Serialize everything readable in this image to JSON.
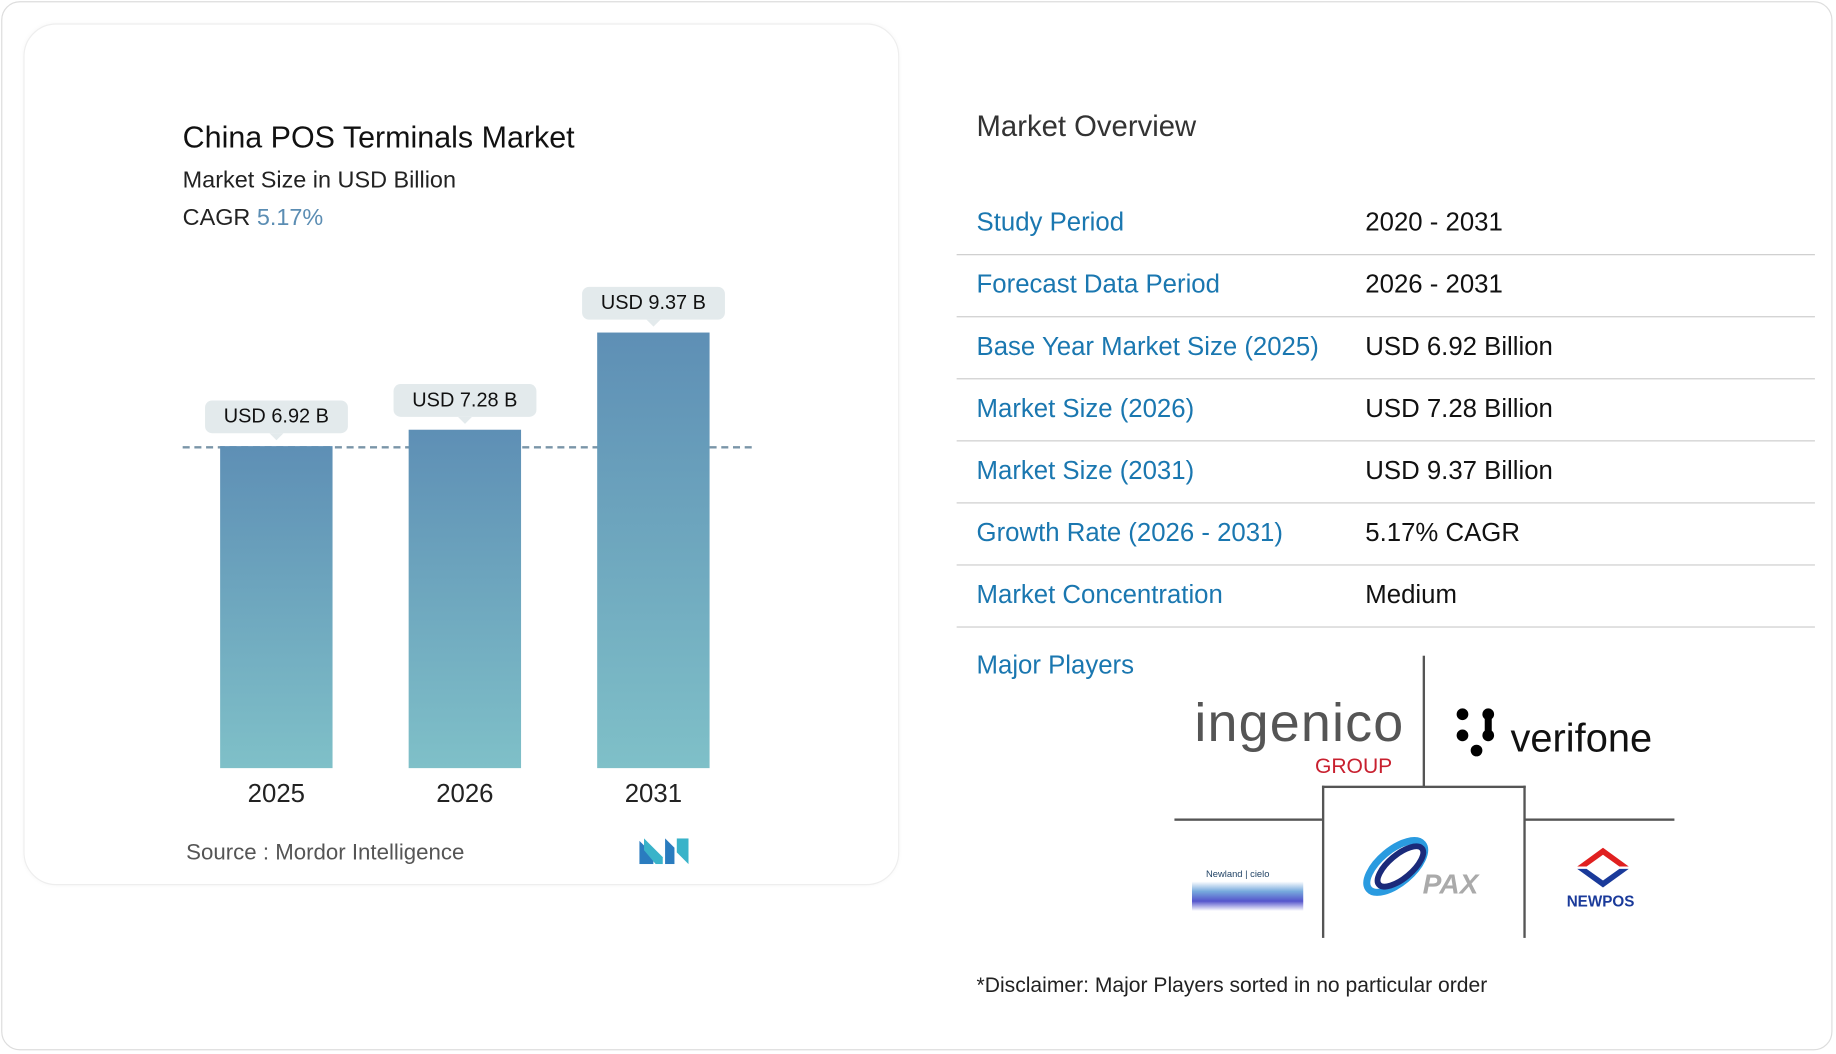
{
  "chart_data": {
    "type": "bar",
    "title": "China POS Terminals Market",
    "subtitle": "Market Size in USD Billion",
    "cagr_label": "CAGR",
    "cagr_value": "5.17%",
    "categories": [
      "2025",
      "2026",
      "2031"
    ],
    "values": [
      6.92,
      7.28,
      9.37
    ],
    "data_labels": [
      "USD 6.92 B",
      "USD 7.28 B",
      "USD 9.37 B"
    ],
    "reference_line": 6.92,
    "bar_color_top": "#5e8fb5",
    "bar_color_bottom": "#7fc0c8",
    "grid": false
  },
  "source": "Source :  Mordor Intelligence",
  "overview": {
    "title": "Market Overview",
    "rows": [
      {
        "k": "Study Period",
        "v": "2020 - 2031"
      },
      {
        "k": "Forecast Data Period",
        "v": "2026 - 2031"
      },
      {
        "k": "Base Year Market Size (2025)",
        "v": "USD 6.92 Billion"
      },
      {
        "k": "Market Size (2026)",
        "v": "USD 7.28 Billion"
      },
      {
        "k": "Market Size (2031)",
        "v": "USD 9.37 Billion"
      },
      {
        "k": "Growth Rate (2026 - 2031)",
        "v": "5.17% CAGR"
      },
      {
        "k": "Market Concentration",
        "v": "Medium"
      }
    ],
    "major_players_label": "Major Players",
    "players": [
      "ingenico GROUP",
      "verifone",
      "Newland cielo",
      "PAX",
      "NEWPOS"
    ],
    "disclaimer": "*Disclaimer: Major Players sorted in no particular order"
  }
}
